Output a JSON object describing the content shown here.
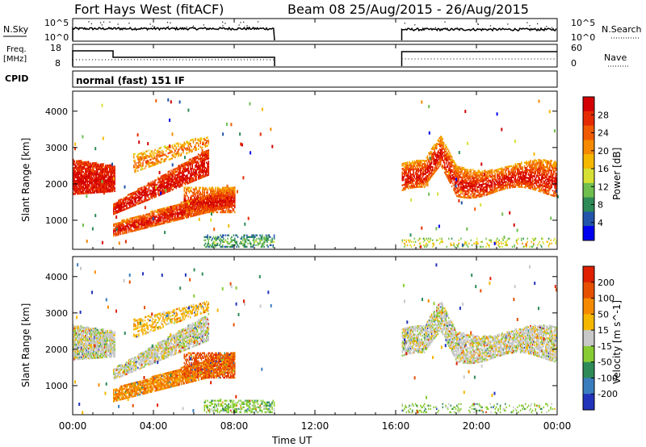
{
  "header": {
    "title": "Fort Hays West (fitACF)",
    "subtitle": "Beam 08 25/Aug/2015 - 26/Aug/2015"
  },
  "top_panels": {
    "nsky_label": "N.Sky",
    "nsky_ticks": [
      "10^5",
      "10^0"
    ],
    "nsearch_label": "N.Search",
    "nsearch_ticks": [
      "10^5",
      "10^0"
    ],
    "freq_label_1": "Freq.",
    "freq_label_2": "[MHz]",
    "freq_ticks": [
      "18",
      "8"
    ],
    "nave_label": "Nave",
    "nave_ticks": [
      "60",
      "0"
    ],
    "cpid_label": "CPID",
    "cpid_value": "normal (fast) 151 IF"
  },
  "chart_data": [
    {
      "type": "heatmap",
      "name": "power",
      "ylabel": "Slant Range [km]",
      "yticks": [
        "4000",
        "3000",
        "2000",
        "1000"
      ],
      "ylim": [
        200,
        4550
      ],
      "colorbar_label": "Power [dB]",
      "colorbar_ticks": [
        "28",
        "24",
        "20",
        "16",
        "12",
        "8",
        "4"
      ],
      "colors": [
        "#0000ee",
        "#2255aa",
        "#2e8b57",
        "#6fbf4f",
        "#d7e034",
        "#f5b800",
        "#f58a00",
        "#f05a00",
        "#e62a00",
        "#d40000"
      ]
    },
    {
      "type": "heatmap",
      "name": "velocity",
      "ylabel": "Slant Range [km]",
      "yticks": [
        "4000",
        "3000",
        "2000",
        "1000"
      ],
      "ylim": [
        200,
        4550
      ],
      "colorbar_label": "Velocity [m s^-1]",
      "colorbar_ticks": [
        "200",
        "100",
        "50",
        "15",
        "-15",
        "-50",
        "-100",
        "-200"
      ],
      "colors": [
        "#2233bb",
        "#3a7dbf",
        "#2e8b57",
        "#88cc33",
        "#c8c8c8",
        "#f5b800",
        "#f58a00",
        "#e65000",
        "#e02000"
      ]
    }
  ],
  "xaxis": {
    "label": "Time UT",
    "ticks": [
      "00:00",
      "04:00",
      "08:00",
      "12:00",
      "16:00",
      "20:00",
      "00:00"
    ]
  }
}
